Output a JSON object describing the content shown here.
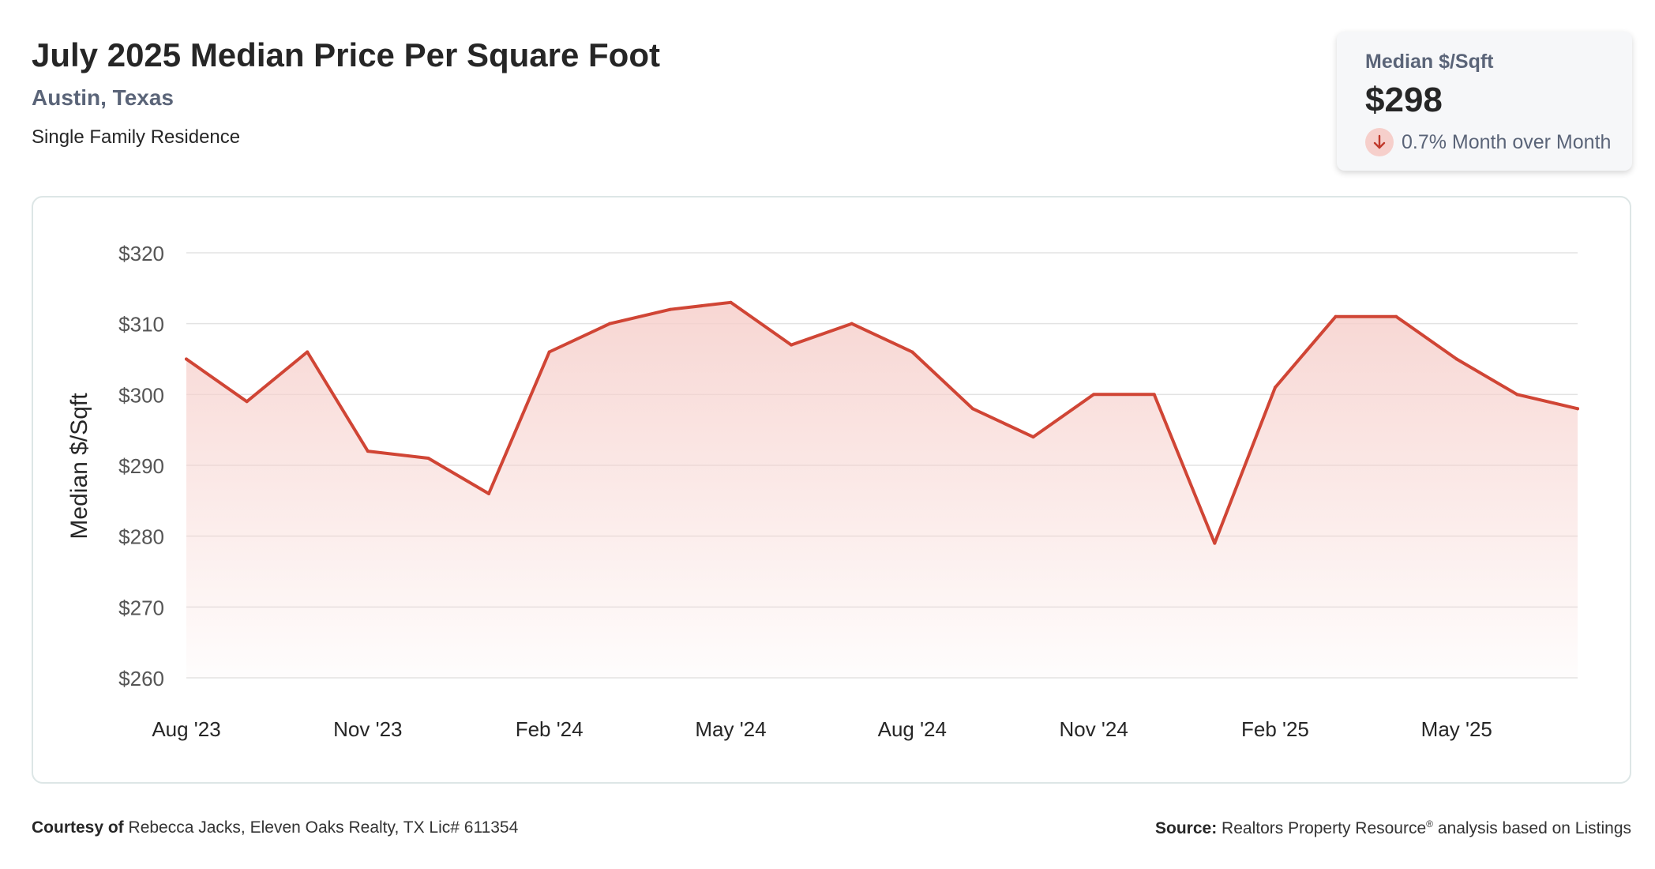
{
  "header": {
    "title": "July 2025 Median Price Per Square Foot",
    "location": "Austin, Texas",
    "property_type": "Single Family Residence"
  },
  "kpi": {
    "label": "Median $/Sqft",
    "value": "$298",
    "change": "0.7% Month over Month",
    "direction_icon": "arrow-down-icon",
    "direction_color": "#c0392b"
  },
  "footer": {
    "courtesy_label": "Courtesy of",
    "courtesy_text": "Rebecca Jacks, Eleven Oaks Realty, TX Lic# 611354",
    "source_label": "Source:",
    "source_text": "Realtors Property Resource",
    "source_mark": "®",
    "source_suffix": "analysis based on Listings"
  },
  "chart_data": {
    "type": "area",
    "ylabel": "Median $/Sqft",
    "ylim": [
      260,
      320
    ],
    "yticks": [
      260,
      270,
      280,
      290,
      300,
      310,
      320
    ],
    "ytick_labels": [
      "$260",
      "$270",
      "$280",
      "$290",
      "$300",
      "$310",
      "$320"
    ],
    "x": [
      "2023-08",
      "2023-09",
      "2023-10",
      "2023-11",
      "2023-12",
      "2024-01",
      "2024-02",
      "2024-03",
      "2024-04",
      "2024-05",
      "2024-06",
      "2024-07",
      "2024-08",
      "2024-09",
      "2024-10",
      "2024-11",
      "2024-12",
      "2025-01",
      "2025-02",
      "2025-03",
      "2025-04",
      "2025-05",
      "2025-06",
      "2025-07"
    ],
    "xticks": [
      "2023-08",
      "2023-11",
      "2024-02",
      "2024-05",
      "2024-08",
      "2024-11",
      "2025-02",
      "2025-05"
    ],
    "xtick_labels": [
      "Aug '23",
      "Nov '23",
      "Feb '24",
      "May '24",
      "Aug '24",
      "Nov '24",
      "Feb '25",
      "May '25"
    ],
    "series": [
      {
        "values": [
          305,
          299,
          306,
          292,
          291,
          286,
          306,
          310,
          312,
          313,
          307,
          310,
          306,
          298,
          294,
          300,
          300,
          279,
          301,
          311,
          311,
          305,
          300,
          298
        ],
        "color": "#d04535",
        "fill_color": "#f6cfcb"
      }
    ],
    "grid": true,
    "legend": "none"
  }
}
